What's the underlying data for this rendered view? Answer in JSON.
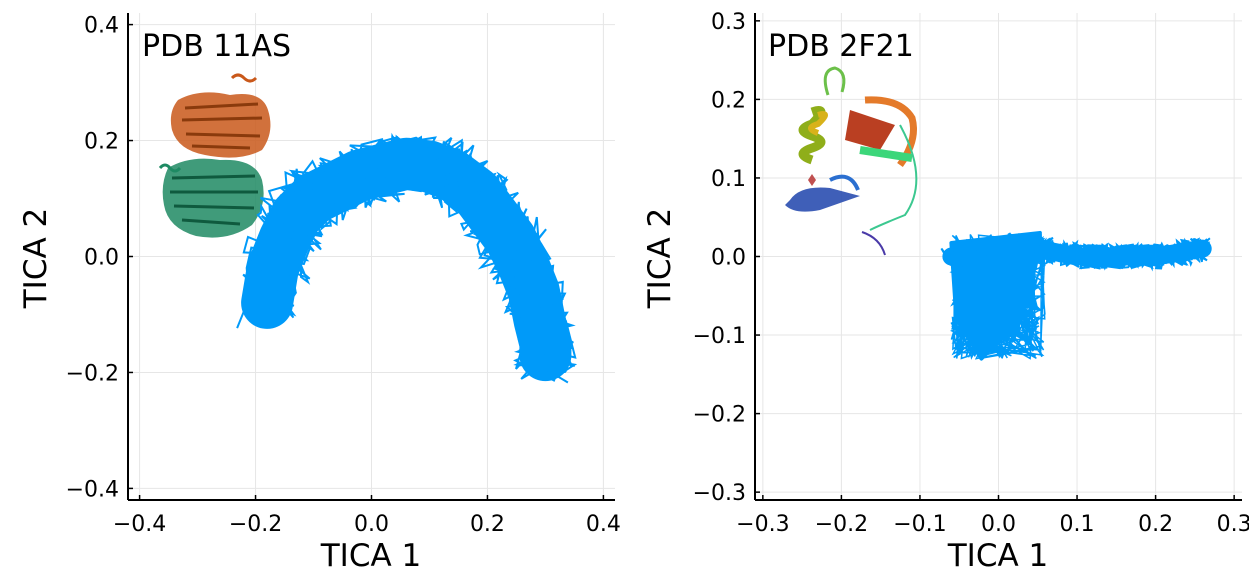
{
  "chart_data": [
    {
      "type": "line",
      "title": "PDB 11AS",
      "xlabel": "TICA 1",
      "ylabel": "TICA 2",
      "xlim": [
        -0.42,
        0.42
      ],
      "ylim": [
        -0.42,
        0.42
      ],
      "xticks": [
        -0.4,
        -0.2,
        0.0,
        0.2,
        0.4
      ],
      "yticks": [
        -0.4,
        -0.2,
        0.0,
        0.2,
        0.4
      ],
      "xtick_labels": [
        "−0.4",
        "−0.2",
        "0.0",
        "0.2",
        "0.4"
      ],
      "ytick_labels": [
        "−0.4",
        "−0.2",
        "0.0",
        "0.2",
        "0.4"
      ],
      "grid": true,
      "series_color": "#009AF9",
      "series": [
        {
          "x": [
            -0.18,
            -0.17,
            -0.15,
            -0.13,
            -0.1,
            -0.06,
            -0.02,
            0.02,
            0.06,
            0.1,
            0.14,
            0.18,
            0.21,
            0.24,
            0.26,
            0.28,
            0.29,
            0.3,
            0.3
          ],
          "y": [
            -0.08,
            -0.02,
            0.03,
            0.07,
            0.1,
            0.12,
            0.14,
            0.15,
            0.16,
            0.155,
            0.14,
            0.11,
            0.07,
            0.03,
            -0.01,
            -0.06,
            -0.11,
            -0.15,
            -0.17
          ]
        }
      ],
      "inset_image": "protein-dimer-structure"
    },
    {
      "type": "line",
      "title": "PDB 2F21",
      "xlabel": "TICA 1",
      "ylabel": "TICA 2",
      "xlim": [
        -0.31,
        0.31
      ],
      "ylim": [
        -0.31,
        0.31
      ],
      "xticks": [
        -0.3,
        -0.2,
        -0.1,
        0.0,
        0.1,
        0.2,
        0.3
      ],
      "yticks": [
        -0.3,
        -0.2,
        -0.1,
        0.0,
        0.1,
        0.2,
        0.3
      ],
      "xtick_labels": [
        "−0.3",
        "−0.2",
        "−0.1",
        "0.0",
        "0.1",
        "0.2",
        "0.3"
      ],
      "ytick_labels": [
        "−0.3",
        "−0.2",
        "−0.1",
        "0.0",
        "0.1",
        "0.2",
        "0.3"
      ],
      "grid": true,
      "series_color": "#009AF9",
      "series": [
        {
          "x": [
            -0.06,
            0.03,
            0.05,
            0.1,
            0.15,
            0.2,
            0.26
          ],
          "y": [
            0.0,
            0.0,
            0.01,
            0.0,
            0.0,
            0.0,
            0.01
          ],
          "cluster_region": {
            "x": [
              -0.06,
              0.04
            ],
            "y": [
              -0.13,
              0.03
            ]
          }
        }
      ],
      "inset_image": "protein-ribbon-structure"
    }
  ]
}
